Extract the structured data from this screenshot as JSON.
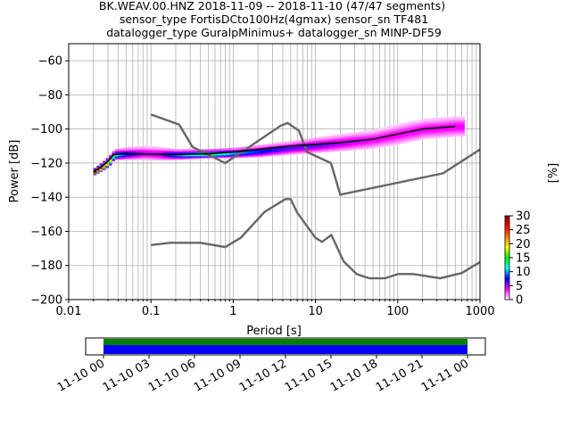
{
  "chart_data": {
    "type": "heatmap",
    "title_lines": [
      "BK.WEAV.00.HNZ   2018-11-09 -- 2018-11-10  (47/47 segments)",
      "sensor_type FortisDCto100Hz(4gmax) sensor_sn TF481",
      "datalogger_type GuralpMinimus+ datalogger_sn MINP-DF59"
    ],
    "xlabel": "Period [s]",
    "ylabel": "Power [dB]",
    "x_scale": "log",
    "xlim": [
      0.01,
      1000
    ],
    "ylim": [
      -200,
      -50
    ],
    "x_ticks": [
      {
        "value": 0.01,
        "label": "0.01"
      },
      {
        "value": 0.1,
        "label": "0.1"
      },
      {
        "value": 1,
        "label": "1"
      },
      {
        "value": 10,
        "label": "10"
      },
      {
        "value": 100,
        "label": "100"
      },
      {
        "value": 1000,
        "label": "1000"
      }
    ],
    "y_ticks": [
      {
        "value": -60,
        "label": "−60"
      },
      {
        "value": -80,
        "label": "−80"
      },
      {
        "value": -100,
        "label": "−100"
      },
      {
        "value": -120,
        "label": "−120"
      },
      {
        "value": -140,
        "label": "−140"
      },
      {
        "value": -160,
        "label": "−160"
      },
      {
        "value": -180,
        "label": "−180"
      },
      {
        "value": -200,
        "label": "−200"
      }
    ],
    "grid": true,
    "colorbar": {
      "label": "[%]",
      "range": [
        0,
        30
      ],
      "ticks": [
        {
          "value": 0,
          "label": "0"
        },
        {
          "value": 5,
          "label": "5"
        },
        {
          "value": 10,
          "label": "10"
        },
        {
          "value": 15,
          "label": "15"
        },
        {
          "value": 20,
          "label": "20"
        },
        {
          "value": 25,
          "label": "25"
        },
        {
          "value": 30,
          "label": "30"
        }
      ],
      "colors": [
        "#ffffff",
        "#ff00ff",
        "#0000ff",
        "#00ffff",
        "#00ff00",
        "#ffff00",
        "#ff8000",
        "#ff0000",
        "#800000"
      ]
    },
    "nhnm": {
      "periods": [
        0.1,
        0.22,
        0.32,
        0.8,
        3.8,
        4.6,
        6.3,
        7.9,
        15.4,
        20,
        354.8,
        1000
      ],
      "power": [
        -91.5,
        -97.4,
        -110.5,
        -120,
        -98,
        -96.5,
        -101,
        -113.5,
        -120,
        -138.5,
        -126,
        -112
      ]
    },
    "nlnm": {
      "periods": [
        0.1,
        0.17,
        0.4,
        0.8,
        1.24,
        2.4,
        4.3,
        5,
        6,
        10,
        12,
        15.6,
        21.9,
        31.6,
        45,
        70,
        101,
        154,
        328,
        600,
        1000
      ],
      "power": [
        -168,
        -166.7,
        -166.7,
        -169.2,
        -163.7,
        -148.6,
        -141.1,
        -141.1,
        -149,
        -163.8,
        -166.2,
        -162.1,
        -177.5,
        -185,
        -187.5,
        -187.5,
        -185,
        -185,
        -187.5,
        -184.4,
        -178
      ]
    },
    "mode_line": {
      "periods": [
        0.02,
        0.025,
        0.03,
        0.035,
        0.05,
        0.1,
        0.2,
        0.5,
        1,
        2,
        5,
        10,
        20,
        50,
        100,
        200,
        500
      ],
      "power": [
        -125,
        -122,
        -119,
        -115,
        -114.5,
        -114.8,
        -115,
        -114.5,
        -113.5,
        -112,
        -110,
        -109,
        -108,
        -106,
        -103,
        -100,
        -98.5
      ]
    },
    "heatmap_bands": [
      {
        "period": 0.02,
        "power": -125,
        "spread": 1.5,
        "level": 30
      },
      {
        "period": 0.025,
        "power": -122,
        "spread": 2,
        "level": 25
      },
      {
        "period": 0.03,
        "power": -119,
        "spread": 2.5,
        "level": 20
      },
      {
        "period": 0.035,
        "power": -115,
        "spread": 2.5,
        "level": 12
      },
      {
        "period": 0.05,
        "power": -114.5,
        "spread": 3,
        "level": 8
      },
      {
        "period": 0.08,
        "power": -114,
        "spread": 3.5,
        "level": 5
      },
      {
        "period": 0.12,
        "power": -114.5,
        "spread": 3.5,
        "level": 5
      },
      {
        "period": 0.2,
        "power": -115,
        "spread": 2.5,
        "level": 10
      },
      {
        "period": 0.5,
        "power": -114.5,
        "spread": 2,
        "level": 15
      },
      {
        "period": 1,
        "power": -114,
        "spread": 2.5,
        "level": 10
      },
      {
        "period": 2,
        "power": -113,
        "spread": 3,
        "level": 8
      },
      {
        "period": 5,
        "power": -111,
        "spread": 3.5,
        "level": 6
      },
      {
        "period": 10,
        "power": -109.5,
        "spread": 4,
        "level": 6
      },
      {
        "period": 20,
        "power": -108,
        "spread": 4.5,
        "level": 5
      },
      {
        "period": 50,
        "power": -106,
        "spread": 5,
        "level": 4
      },
      {
        "period": 100,
        "power": -103,
        "spread": 5.5,
        "level": 4
      },
      {
        "period": 200,
        "power": -100,
        "spread": 5.5,
        "level": 4
      },
      {
        "period": 500,
        "power": -98.5,
        "spread": 5.5,
        "level": 4
      }
    ],
    "timeline": {
      "ticks": [
        {
          "label": "11-10 00",
          "pos": 0
        },
        {
          "label": "11-10 03",
          "pos": 0.125
        },
        {
          "label": "11-10 06",
          "pos": 0.25
        },
        {
          "label": "11-10 09",
          "pos": 0.375
        },
        {
          "label": "11-10 12",
          "pos": 0.5
        },
        {
          "label": "11-10 15",
          "pos": 0.625
        },
        {
          "label": "11-10 18",
          "pos": 0.75
        },
        {
          "label": "11-10 21",
          "pos": 0.875
        },
        {
          "label": "11-11 00",
          "pos": 1
        }
      ],
      "data_color": "#008000",
      "used_color": "#0000ff"
    }
  }
}
